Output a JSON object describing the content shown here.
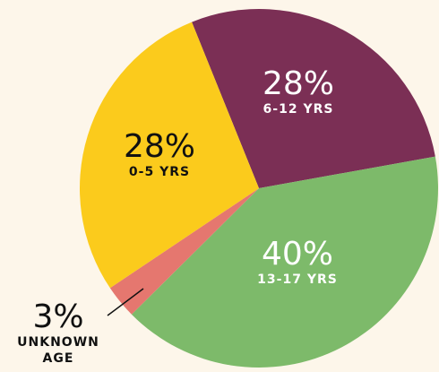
{
  "chart_data": {
    "type": "pie",
    "categories": [
      "6-12 YRS",
      "13-17 YRS",
      "UNKNOWN AGE",
      "0-5 YRS"
    ],
    "values": [
      28,
      40,
      3,
      28
    ],
    "value_labels": [
      "28%",
      "40%",
      "3%",
      "28%"
    ],
    "colors": [
      "#7b2f55",
      "#7dba6a",
      "#e5776f",
      "#fbcb1c"
    ]
  }
}
